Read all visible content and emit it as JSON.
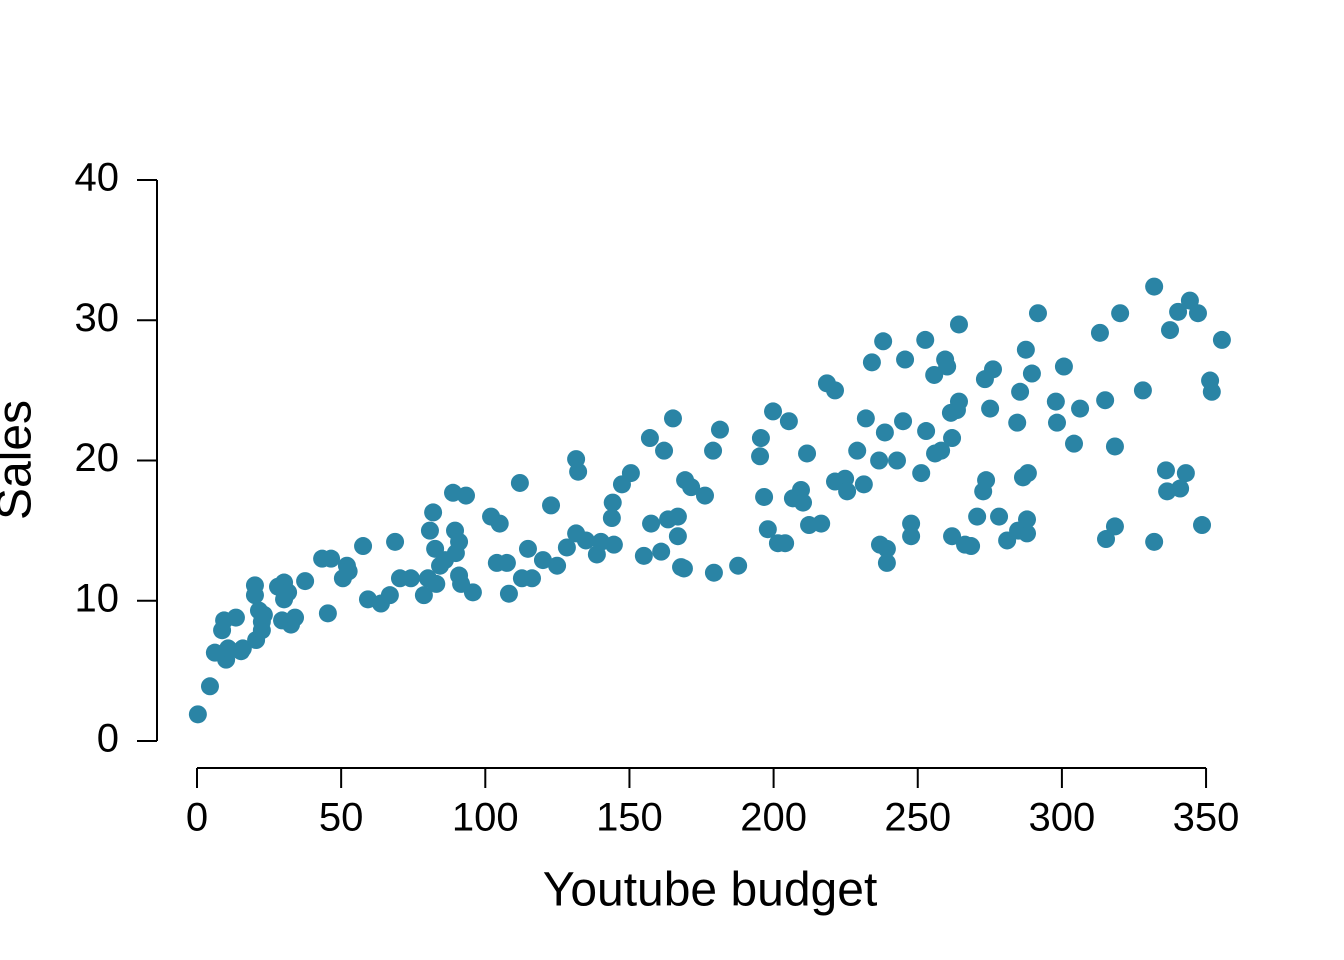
{
  "chart_data": {
    "type": "scatter",
    "x_label": "Youtube budget",
    "y_label": "Sales",
    "color": "#2a84a5",
    "xlim": [
      0,
      360
    ],
    "ylim": [
      0,
      40
    ],
    "xticks": [
      0,
      50,
      100,
      150,
      200,
      250,
      300,
      350
    ],
    "yticks": [
      0,
      10,
      20,
      30,
      40
    ],
    "x": [
      0.3,
      4.5,
      6.2,
      8.7,
      9.4,
      10.1,
      10.8,
      13.5,
      15.3,
      15.9,
      20.1,
      20.1,
      20.5,
      21.5,
      22.5,
      22.5,
      23.2,
      28.1,
      29.5,
      30.2,
      30.2,
      31.6,
      32.6,
      34,
      37.5,
      43.4,
      45.4,
      46.5,
      50.6,
      52,
      52.6,
      57.6,
      59.3,
      63.8,
      66.9,
      68.7,
      70.4,
      74.2,
      78.7,
      80.1,
      80.8,
      81.9,
      82.6,
      83,
      84.3,
      86,
      88.8,
      89.5,
      89.8,
      90.9,
      90.9,
      91.6,
      93.3,
      95.7,
      102,
      104,
      105,
      107.5,
      108.2,
      112,
      112.7,
      114.8,
      116.2,
      120,
      122.8,
      124.9,
      128.3,
      131.5,
      132.2,
      131.5,
      134.9,
      138.7,
      140.1,
      143.9,
      144.6,
      144.2,
      147.4,
      150.5,
      155,
      157.1,
      157.5,
      161,
      162,
      163.4,
      165.1,
      166.8,
      166.8,
      167.9,
      168.9,
      169.3,
      171.4,
      176.2,
      179,
      179.3,
      181.4,
      187.7,
      195.6,
      195.3,
      196.7,
      198,
      199.8,
      201.5,
      204,
      205.3,
      206.7,
      209.5,
      210.2,
      211.6,
      212.3,
      216.5,
      218.5,
      221.3,
      221.3,
      224.8,
      225.5,
      229,
      231.3,
      232,
      234.1,
      236.6,
      236.9,
      238,
      238.6,
      239.3,
      239.3,
      242.8,
      244.9,
      245.6,
      247.7,
      247.7,
      251.2,
      252.6,
      252.9,
      255.7,
      256,
      258.1,
      259.5,
      260.2,
      261.5,
      261.9,
      261.9,
      263.6,
      264.3,
      264.3,
      266.4,
      268.5,
      270.6,
      272.7,
      273.3,
      273.7,
      275.1,
      276.1,
      278.2,
      281,
      284.5,
      284.8,
      285.5,
      286.5,
      287.5,
      287.9,
      287.9,
      288.2,
      289.6,
      291.7,
      297.9,
      298.3,
      300.7,
      304.2,
      306.3,
      313.2,
      315,
      315.3,
      318.4,
      318.4,
      320.2,
      328.1,
      332,
      332,
      336.1,
      336.5,
      337.5,
      340.3,
      341,
      343,
      344.4,
      347.2,
      348.6,
      351.4,
      352,
      355.5
    ],
    "values": [
      1.9,
      3.9,
      6.3,
      7.9,
      8.6,
      5.8,
      6.6,
      8.8,
      6.4,
      6.6,
      10.4,
      11.1,
      7.2,
      9.3,
      7.9,
      8.5,
      9,
      11,
      8.6,
      11.3,
      10.1,
      10.6,
      8.3,
      8.8,
      11.4,
      13,
      9.1,
      13,
      11.6,
      12.5,
      12.1,
      13.9,
      10.1,
      9.8,
      10.4,
      14.2,
      11.6,
      11.6,
      10.4,
      11.6,
      15,
      16.3,
      13.7,
      11.2,
      12.5,
      12.9,
      17.7,
      15,
      13.4,
      14.2,
      11.8,
      11.2,
      17.5,
      10.6,
      16,
      12.7,
      15.5,
      12.7,
      10.5,
      18.4,
      11.6,
      13.7,
      11.6,
      12.9,
      16.8,
      12.5,
      13.8,
      20.1,
      19.2,
      14.8,
      14.3,
      13.3,
      14.2,
      15.9,
      14,
      17,
      18.3,
      19.1,
      13.2,
      21.6,
      15.5,
      13.5,
      20.7,
      15.8,
      23,
      16,
      14.6,
      12.4,
      12.3,
      18.6,
      18.1,
      17.5,
      20.7,
      12,
      22.2,
      12.5,
      21.6,
      20.3,
      17.4,
      15.1,
      23.5,
      14.1,
      14.1,
      22.8,
      17.3,
      17.9,
      17,
      20.5,
      15.4,
      15.5,
      25.5,
      25,
      18.5,
      18.7,
      17.8,
      20.7,
      18.3,
      23,
      27,
      20,
      14,
      28.5,
      22,
      13.7,
      12.7,
      20,
      22.8,
      27.2,
      15.5,
      14.6,
      19.1,
      28.6,
      22.1,
      26.1,
      20.5,
      20.7,
      27.2,
      26.7,
      23.4,
      14.6,
      21.6,
      23.6,
      29.7,
      24.2,
      14,
      13.9,
      16,
      17.8,
      25.8,
      18.6,
      23.7,
      26.5,
      16,
      14.3,
      22.7,
      15,
      24.9,
      18.8,
      27.9,
      14.8,
      15.8,
      19.1,
      26.2,
      30.5,
      24.2,
      22.7,
      26.7,
      21.2,
      23.7,
      29.1,
      24.3,
      14.4,
      15.3,
      21,
      30.5,
      25,
      32.4,
      14.2,
      19.3,
      17.8,
      29.3,
      30.6,
      18,
      19.1,
      31.4,
      30.5,
      15.4,
      25.7,
      24.9,
      28.6
    ]
  }
}
